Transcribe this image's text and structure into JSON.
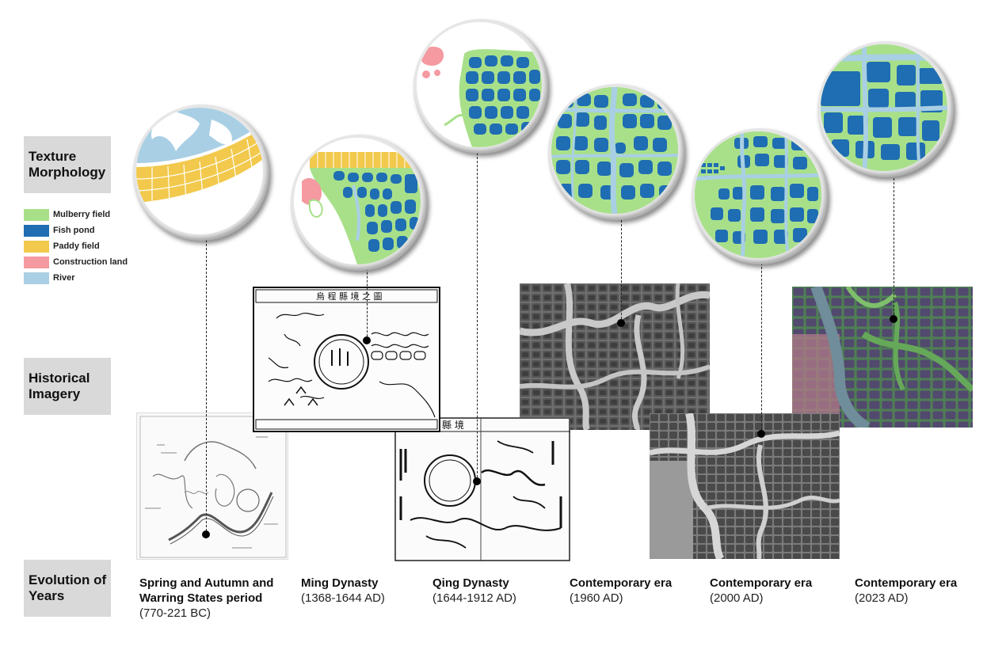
{
  "row_labels": {
    "texture": "Texture\nMorphology",
    "historical": "Historical\nImagery",
    "years": "Evolution of\nYears"
  },
  "legend": [
    {
      "label": "Mulberry field",
      "color": "#a8e08a"
    },
    {
      "label": "Fish pond",
      "color": "#1f6db3"
    },
    {
      "label": "Paddy field",
      "color": "#f2c94c"
    },
    {
      "label": "Construction land",
      "color": "#f49aa0"
    },
    {
      "label": "River",
      "color": "#a9cfe4"
    }
  ],
  "eras": [
    {
      "name": "Spring and Autumn and\nWarring States period",
      "date": "(770-221 BC)"
    },
    {
      "name": "Ming Dynasty",
      "date": " (1368-1644 AD)"
    },
    {
      "name": "Qing Dynasty",
      "date": " (1644-1912 AD)"
    },
    {
      "name": "Contemporary era",
      "date": " (1960 AD)"
    },
    {
      "name": "Contemporary era",
      "date": " (2000 AD)"
    },
    {
      "name": "Contemporary era",
      "date": " (2023 AD)"
    }
  ],
  "colors": {
    "mulberry": "#a8e08a",
    "fishpond": "#1f6db3",
    "paddy": "#f2c94c",
    "construction": "#f49aa0",
    "river": "#a9cfe4",
    "label_bg": "#d9d9d9"
  },
  "map_text": {
    "ming_title": "烏 程 縣 境 之 圖",
    "qing_title": "縣 境"
  }
}
